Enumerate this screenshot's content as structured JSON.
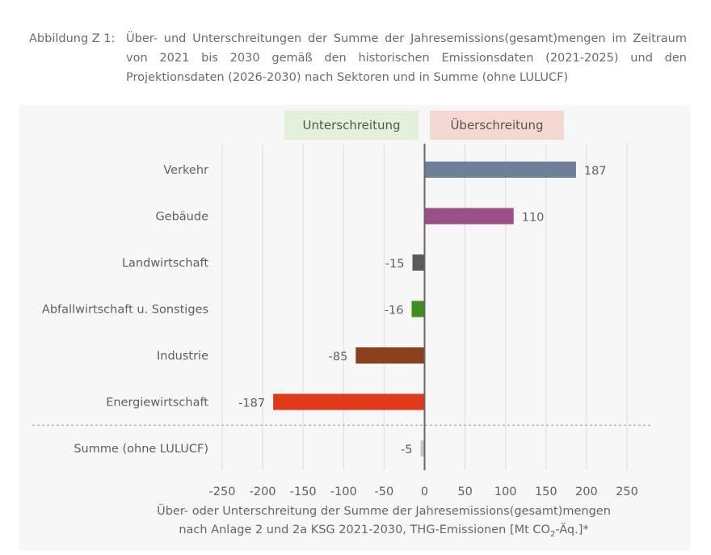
{
  "caption": {
    "label": "Abbildung Z 1:",
    "text": "Über- und Unterschreitungen der Summe der Jahresemissions(gesamt)mengen im Zeitraum von 2021 bis 2030 gemäß den historischen Emissionsdaten (2021-2025) und den Projektionsdaten (2026-2030) nach Sektoren und in Summe (ohne LULUCF)"
  },
  "legend": {
    "under_label": "Unterschreitung",
    "over_label": "Überschreitung",
    "under_color": "#e3f1dc",
    "over_color": "#f6d8d3"
  },
  "chart_data": {
    "type": "bar",
    "orientation": "horizontal",
    "categories": [
      "Verkehr",
      "Gebäude",
      "Landwirtschaft",
      "Abfallwirtschaft u. Sonstiges",
      "Industrie",
      "Energiewirtschaft",
      "Summe (ohne LULUCF)"
    ],
    "values": [
      187,
      110,
      -15,
      -16,
      -85,
      -187,
      -5
    ],
    "value_labels": [
      "187",
      "110",
      "-15",
      "-16",
      "-85",
      "-187",
      "-5"
    ],
    "colors": [
      "#6d8097",
      "#9b4f87",
      "#5a5a5a",
      "#3f8f1c",
      "#8a3f1e",
      "#de3a1a",
      "#c8c8c8"
    ],
    "xlim": [
      -250,
      250
    ],
    "xticks": [
      -250,
      -200,
      -150,
      -100,
      -50,
      0,
      50,
      100,
      150,
      200,
      250
    ],
    "xtick_labels": [
      "-250",
      "-200",
      "-150",
      "-100",
      "-50",
      "0",
      "50",
      "100",
      "150",
      "200",
      "250"
    ],
    "grid": true,
    "separator_before_last": true,
    "xlabel_line1": "Über- oder Unterschreitung der Summe der Jahresemissions(gesamt)mengen",
    "xlabel_line2_pre": "nach Anlage 2 und 2a KSG 2021-2030, THG-Emissionen [Mt CO",
    "xlabel_line2_sub": "2",
    "xlabel_line2_post": "-Äq.]*"
  }
}
